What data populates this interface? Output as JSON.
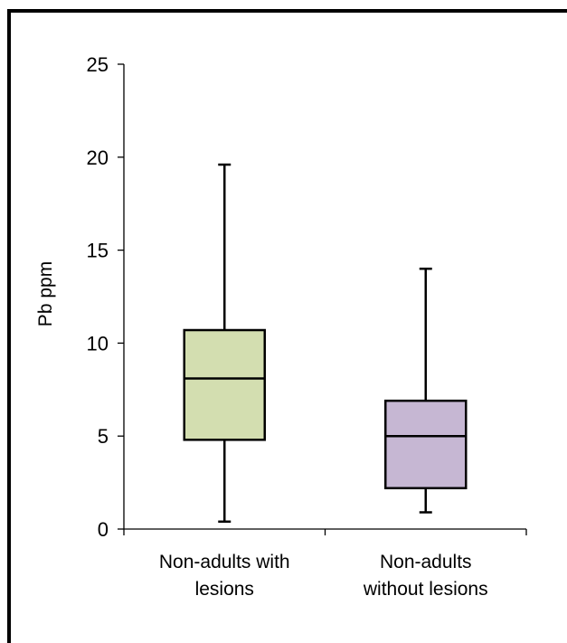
{
  "chart_data": {
    "type": "boxplot",
    "ylabel": "Pb ppm",
    "ylim": [
      0,
      25
    ],
    "yticks": [
      0,
      5,
      10,
      15,
      20,
      25
    ],
    "grid": false,
    "categories": [
      [
        "Non-adults with",
        "lesions"
      ],
      [
        "Non-adults",
        "without lesions"
      ]
    ],
    "boxes": [
      {
        "min": 0.4,
        "q1": 4.8,
        "median": 8.1,
        "q3": 10.7,
        "max": 19.6,
        "color": "#d3deb0"
      },
      {
        "min": 0.9,
        "q1": 2.2,
        "median": 5.0,
        "q3": 6.9,
        "max": 14.0,
        "color": "#c6b7d3"
      }
    ]
  }
}
